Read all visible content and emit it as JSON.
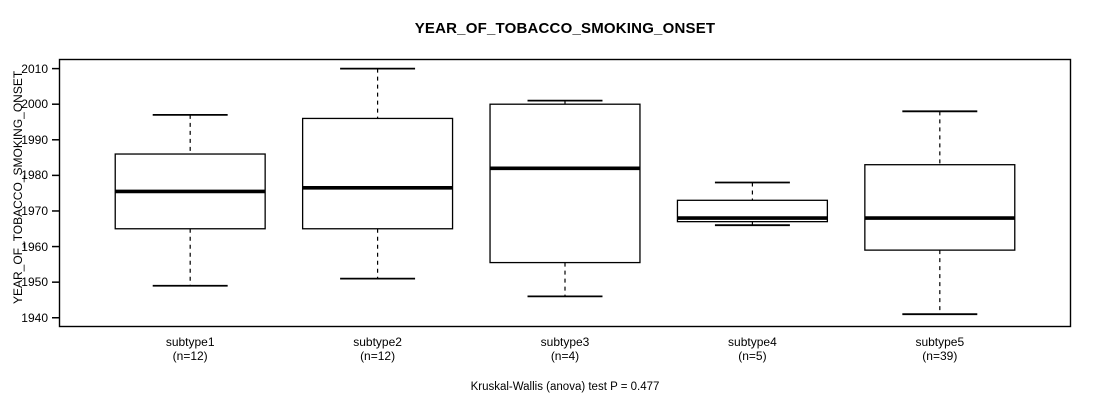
{
  "title": "YEAR_OF_TOBACCO_SMOKING_ONSET",
  "caption": "Kruskal-Wallis (anova) test P = 0.477",
  "chart_data": {
    "type": "boxplot",
    "title": "YEAR_OF_TOBACCO_SMOKING_ONSET",
    "xlabel": "",
    "ylabel": "YEAR_OF_TOBACCO_SMOKING_ONSET",
    "caption": "Kruskal-Wallis (anova) test P = 0.477",
    "p_value": 0.477,
    "statistical_test": "Kruskal-Wallis (anova) test",
    "categories": [
      "subtype1",
      "subtype2",
      "subtype3",
      "subtype4",
      "subtype5"
    ],
    "n_labels": [
      "(n=12)",
      "(n=12)",
      "(n=4)",
      "(n=5)",
      "(n=39)"
    ],
    "sample_sizes": [
      12,
      12,
      4,
      5,
      39
    ],
    "series": [
      {
        "name": "subtype1",
        "n": 12,
        "whisker_low": 1949,
        "q1": 1965,
        "median": 1975.5,
        "q3": 1986,
        "whisker_high": 1997
      },
      {
        "name": "subtype2",
        "n": 12,
        "whisker_low": 1951,
        "q1": 1965,
        "median": 1976.5,
        "q3": 1996,
        "whisker_high": 2010
      },
      {
        "name": "subtype3",
        "n": 4,
        "whisker_low": 1946,
        "q1": 1955.5,
        "median": 1982,
        "q3": 2000,
        "whisker_high": 2001
      },
      {
        "name": "subtype4",
        "n": 5,
        "whisker_low": 1966,
        "q1": 1967,
        "median": 1968,
        "q3": 1973,
        "whisker_high": 1978
      },
      {
        "name": "subtype5",
        "n": 39,
        "whisker_low": 1941,
        "q1": 1959,
        "median": 1968,
        "q3": 1983,
        "whisker_high": 1998
      }
    ],
    "y_ticks": [
      1940,
      1950,
      1960,
      1970,
      1980,
      1990,
      2000,
      2010
    ],
    "ylim": [
      1937.4,
      2012.7
    ],
    "grid": false,
    "legend": null,
    "box_color": "#ffffff",
    "stroke_color": "#000000",
    "background_color": "#ffffff"
  }
}
